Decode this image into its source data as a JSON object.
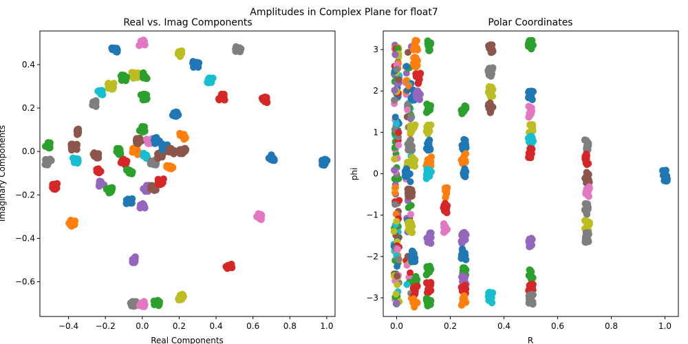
{
  "figure": {
    "suptitle": "Amplitudes in Complex Plane for float7"
  },
  "colors": [
    "#1f77b4",
    "#ff7f0e",
    "#2ca02c",
    "#d62728",
    "#9467bd",
    "#8c564b",
    "#e377c2",
    "#7f7f7f",
    "#bcbd22",
    "#17becf"
  ],
  "chart_data": [
    {
      "type": "scatter",
      "title": "Real vs. Imag Components",
      "xlabel": "Real Components",
      "ylabel": "Imaginary Components",
      "xlim": [
        -0.555,
        1.045
      ],
      "ylim": [
        -0.76,
        0.555
      ],
      "xticks": [
        -0.4,
        -0.2,
        0.0,
        0.2,
        0.4,
        0.6,
        0.8,
        1.0
      ],
      "xtick_labels": [
        "−0.4",
        "−0.2",
        "0.0",
        "0.2",
        "0.4",
        "0.6",
        "0.8",
        "1.0"
      ],
      "yticks": [
        -0.6,
        -0.4,
        -0.2,
        0.0,
        0.2,
        0.4
      ],
      "ytick_labels": [
        "−0.6",
        "−0.4",
        "−0.2",
        "0.0",
        "0.2",
        "0.4"
      ],
      "grid": false,
      "legend": "none",
      "clusters": [
        {
          "x": 0.0,
          "y": 0.5,
          "c": 6
        },
        {
          "x": -0.15,
          "y": 0.47,
          "c": 0
        },
        {
          "x": 0.2,
          "y": 0.45,
          "c": 8
        },
        {
          "x": 0.52,
          "y": 0.47,
          "c": 7
        },
        {
          "x": 0.29,
          "y": 0.4,
          "c": 0
        },
        {
          "x": 0.37,
          "y": 0.33,
          "c": 9
        },
        {
          "x": 0.43,
          "y": 0.25,
          "c": 3
        },
        {
          "x": 0.66,
          "y": 0.24,
          "c": 3
        },
        {
          "x": -0.26,
          "y": 0.22,
          "c": 7
        },
        {
          "x": -0.17,
          "y": 0.3,
          "c": 8
        },
        {
          "x": -0.1,
          "y": 0.34,
          "c": 2
        },
        {
          "x": -0.04,
          "y": 0.35,
          "c": 8
        },
        {
          "x": 0.01,
          "y": 0.35,
          "c": 2
        },
        {
          "x": -0.23,
          "y": 0.27,
          "c": 9
        },
        {
          "x": 0.01,
          "y": 0.25,
          "c": 2
        },
        {
          "x": 0.18,
          "y": 0.17,
          "c": 0
        },
        {
          "x": -0.36,
          "y": 0.09,
          "c": 5
        },
        {
          "x": -0.37,
          "y": 0.02,
          "c": 5
        },
        {
          "x": -0.51,
          "y": 0.03,
          "c": 2
        },
        {
          "x": -0.51,
          "y": -0.05,
          "c": 7
        },
        {
          "x": -0.36,
          "y": -0.04,
          "c": 9
        },
        {
          "x": -0.25,
          "y": -0.02,
          "c": 5
        },
        {
          "x": -0.24,
          "y": -0.09,
          "c": 3
        },
        {
          "x": -0.22,
          "y": -0.15,
          "c": 4
        },
        {
          "x": -0.18,
          "y": -0.18,
          "c": 2
        },
        {
          "x": -0.13,
          "y": 0.0,
          "c": 2
        },
        {
          "x": -0.1,
          "y": -0.05,
          "c": 3
        },
        {
          "x": -0.07,
          "y": -0.09,
          "c": 2
        },
        {
          "x": -0.07,
          "y": -0.23,
          "c": 0
        },
        {
          "x": -0.04,
          "y": 0.0,
          "c": 1
        },
        {
          "x": -0.02,
          "y": 0.05,
          "c": 5
        },
        {
          "x": 0.0,
          "y": 0.1,
          "c": 2
        },
        {
          "x": 0.02,
          "y": -0.02,
          "c": 9
        },
        {
          "x": 0.04,
          "y": 0.05,
          "c": 6
        },
        {
          "x": 0.06,
          "y": -0.05,
          "c": 7
        },
        {
          "x": 0.08,
          "y": 0.05,
          "c": 0
        },
        {
          "x": 0.1,
          "y": -0.02,
          "c": 5
        },
        {
          "x": 0.12,
          "y": 0.02,
          "c": 0
        },
        {
          "x": 0.15,
          "y": -0.07,
          "c": 1
        },
        {
          "x": 0.16,
          "y": 0.0,
          "c": 5
        },
        {
          "x": 0.22,
          "y": 0.07,
          "c": 1
        },
        {
          "x": 0.22,
          "y": 0.0,
          "c": 5
        },
        {
          "x": 0.02,
          "y": -0.17,
          "c": 4
        },
        {
          "x": 0.06,
          "y": -0.17,
          "c": 5
        },
        {
          "x": 0.1,
          "y": -0.14,
          "c": 3
        },
        {
          "x": 0.0,
          "y": -0.25,
          "c": 4
        },
        {
          "x": -0.47,
          "y": -0.16,
          "c": 3
        },
        {
          "x": -0.38,
          "y": -0.33,
          "c": 1
        },
        {
          "x": 0.7,
          "y": -0.03,
          "c": 0
        },
        {
          "x": 0.99,
          "y": -0.05,
          "c": 0
        },
        {
          "x": 0.63,
          "y": -0.3,
          "c": 6
        },
        {
          "x": 0.47,
          "y": -0.53,
          "c": 3
        },
        {
          "x": -0.04,
          "y": -0.5,
          "c": 4
        },
        {
          "x": -0.05,
          "y": -0.7,
          "c": 7
        },
        {
          "x": 0.0,
          "y": -0.7,
          "c": 6
        },
        {
          "x": 0.08,
          "y": -0.7,
          "c": 2
        },
        {
          "x": 0.21,
          "y": -0.67,
          "c": 8
        }
      ]
    },
    {
      "type": "scatter",
      "title": "Polar Coordinates",
      "xlabel": "R",
      "ylabel": "phi",
      "xlim": [
        -0.05,
        1.05
      ],
      "ylim": [
        -3.45,
        3.45
      ],
      "xticks": [
        0.0,
        0.2,
        0.4,
        0.6,
        0.8,
        1.0
      ],
      "xtick_labels": [
        "0.0",
        "0.2",
        "0.4",
        "0.6",
        "0.8",
        "1.0"
      ],
      "yticks": [
        -3,
        -2,
        -1,
        0,
        1,
        2,
        3
      ],
      "ytick_labels": [
        "−3",
        "−2",
        "−1",
        "0",
        "1",
        "2",
        "3"
      ],
      "grid": false,
      "legend": "none",
      "column_R_values": [
        0.0,
        0.045,
        0.07,
        0.125,
        0.177,
        0.25,
        0.354,
        0.5,
        0.707,
        1.0
      ],
      "clusters": [
        {
          "x": 0.07,
          "y": 3.1,
          "c": 1
        },
        {
          "x": 0.12,
          "y": 3.1,
          "c": 2
        },
        {
          "x": 0.35,
          "y": 3.0,
          "c": 5
        },
        {
          "x": 0.5,
          "y": 3.1,
          "c": 2
        },
        {
          "x": 0.07,
          "y": 2.7,
          "c": 1
        },
        {
          "x": 0.08,
          "y": 2.3,
          "c": 3
        },
        {
          "x": 0.35,
          "y": 2.45,
          "c": 7
        },
        {
          "x": 0.06,
          "y": 1.9,
          "c": 0
        },
        {
          "x": 0.08,
          "y": 1.9,
          "c": 4
        },
        {
          "x": 0.35,
          "y": 2.0,
          "c": 8
        },
        {
          "x": 0.5,
          "y": 1.9,
          "c": 0
        },
        {
          "x": 0.12,
          "y": 1.55,
          "c": 2
        },
        {
          "x": 0.25,
          "y": 1.55,
          "c": 2
        },
        {
          "x": 0.35,
          "y": 1.6,
          "c": 5
        },
        {
          "x": 0.5,
          "y": 1.5,
          "c": 6
        },
        {
          "x": 0.06,
          "y": 1.1,
          "c": 8
        },
        {
          "x": 0.12,
          "y": 1.1,
          "c": 8
        },
        {
          "x": 0.5,
          "y": 1.1,
          "c": 8
        },
        {
          "x": 0.05,
          "y": 0.7,
          "c": 7
        },
        {
          "x": 0.06,
          "y": 0.3,
          "c": 8
        },
        {
          "x": 0.12,
          "y": 0.7,
          "c": 0
        },
        {
          "x": 0.12,
          "y": 0.3,
          "c": 1
        },
        {
          "x": 0.25,
          "y": 0.7,
          "c": 0
        },
        {
          "x": 0.25,
          "y": 0.35,
          "c": 1
        },
        {
          "x": 0.5,
          "y": 0.8,
          "c": 9
        },
        {
          "x": 0.5,
          "y": 0.5,
          "c": 3
        },
        {
          "x": 0.71,
          "y": 0.7,
          "c": 7
        },
        {
          "x": 0.71,
          "y": 0.35,
          "c": 3
        },
        {
          "x": 0.04,
          "y": 0.0,
          "c": 0
        },
        {
          "x": 0.12,
          "y": 0.0,
          "c": 9
        },
        {
          "x": 0.25,
          "y": 0.0,
          "c": 0
        },
        {
          "x": 0.71,
          "y": -0.1,
          "c": 5
        },
        {
          "x": 0.71,
          "y": -0.45,
          "c": 6
        },
        {
          "x": 1.0,
          "y": -0.05,
          "c": 0
        },
        {
          "x": 0.05,
          "y": -0.5,
          "c": 5
        },
        {
          "x": 0.18,
          "y": -0.45,
          "c": 1
        },
        {
          "x": 0.05,
          "y": -1.3,
          "c": 8
        },
        {
          "x": 0.18,
          "y": -0.85,
          "c": 3
        },
        {
          "x": 0.18,
          "y": -1.3,
          "c": 6
        },
        {
          "x": 0.12,
          "y": -1.55,
          "c": 4
        },
        {
          "x": 0.25,
          "y": -1.55,
          "c": 4
        },
        {
          "x": 0.5,
          "y": -1.65,
          "c": 4
        },
        {
          "x": 0.71,
          "y": -0.85,
          "c": 7
        },
        {
          "x": 0.71,
          "y": -1.25,
          "c": 8
        },
        {
          "x": 0.71,
          "y": -1.55,
          "c": 7
        },
        {
          "x": 0.06,
          "y": -2.0,
          "c": 0
        },
        {
          "x": 0.25,
          "y": -1.95,
          "c": 0
        },
        {
          "x": 0.12,
          "y": -2.35,
          "c": 2
        },
        {
          "x": 0.25,
          "y": -2.35,
          "c": 2
        },
        {
          "x": 0.5,
          "y": -2.45,
          "c": 2
        },
        {
          "x": 0.07,
          "y": -2.6,
          "c": 2
        },
        {
          "x": 0.25,
          "y": -2.6,
          "c": 4
        },
        {
          "x": 0.07,
          "y": -2.85,
          "c": 3
        },
        {
          "x": 0.12,
          "y": -2.75,
          "c": 3
        },
        {
          "x": 0.25,
          "y": -2.8,
          "c": 3
        },
        {
          "x": 0.5,
          "y": -2.8,
          "c": 3
        },
        {
          "x": 0.07,
          "y": -3.1,
          "c": 1
        },
        {
          "x": 0.12,
          "y": -3.1,
          "c": 2
        },
        {
          "x": 0.25,
          "y": -3.05,
          "c": 1
        },
        {
          "x": 0.35,
          "y": -3.0,
          "c": 9
        },
        {
          "x": 0.5,
          "y": -3.05,
          "c": 7
        }
      ]
    }
  ]
}
